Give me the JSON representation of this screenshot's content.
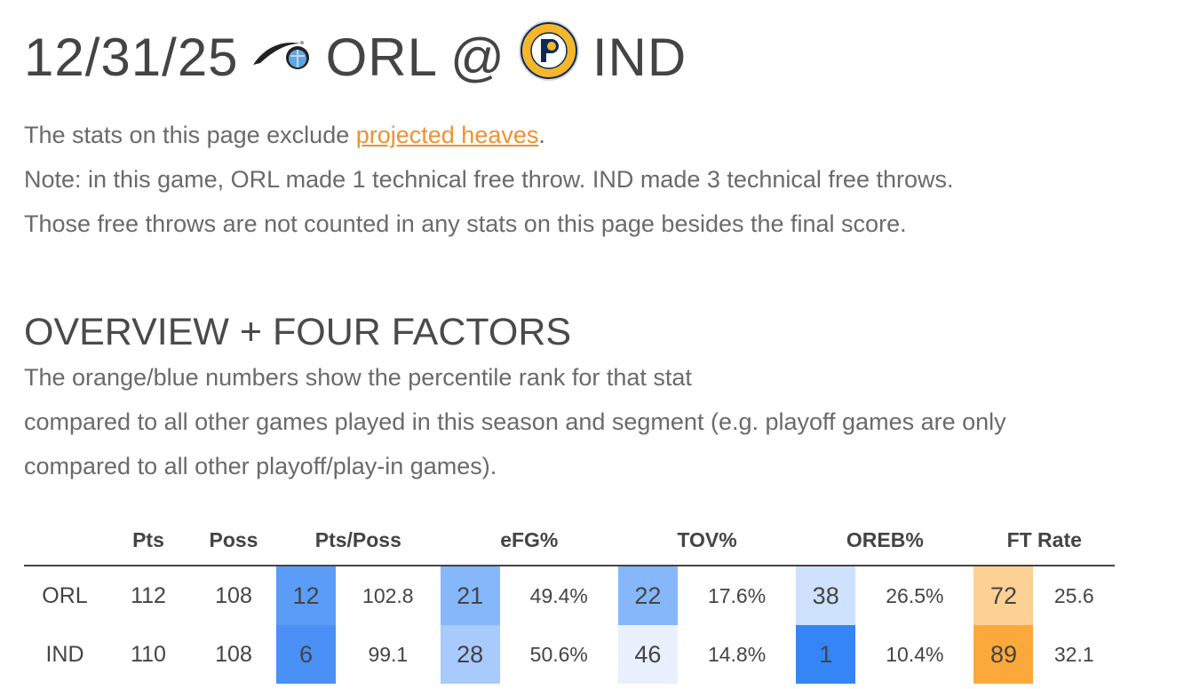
{
  "header": {
    "date": "12/31/25",
    "away": "ORL",
    "at": "@",
    "home": "IND",
    "away_logo": "orlando-magic-logo",
    "home_logo": "indiana-pacers-logo"
  },
  "intro": {
    "line1_pre": "The stats on this page exclude ",
    "link": "projected heaves",
    "line1_post": ".",
    "line2": "Note: in this game, ORL made 1 technical free throw. IND made 3 technical free throws.",
    "line3": "Those free throws are not counted in any stats on this page besides the final score."
  },
  "section": {
    "title": "OVERVIEW + FOUR FACTORS",
    "desc1": "The orange/blue numbers show the percentile rank for that stat",
    "desc2": "compared to all other games played in this season and segment (e.g. playoff games are only",
    "desc3": "compared to all other playoff/play-in games)."
  },
  "table": {
    "headers": [
      "",
      "Pts",
      "Poss",
      "Pts/Poss",
      "eFG%",
      "TOV%",
      "OREB%",
      "FT Rate"
    ],
    "rows": [
      {
        "team": "ORL",
        "pts": "112",
        "poss": "108",
        "ptsposs": {
          "pct": "12",
          "val": "102.8",
          "color": "#5b9cf8"
        },
        "efg": {
          "pct": "21",
          "val": "49.4%",
          "color": "#86b7fb"
        },
        "tov": {
          "pct": "22",
          "val": "17.6%",
          "color": "#86b7fb"
        },
        "oreb": {
          "pct": "38",
          "val": "26.5%",
          "color": "#cfe2fd"
        },
        "ft": {
          "pct": "72",
          "val": "25.6",
          "color": "#fdd193"
        }
      },
      {
        "team": "IND",
        "pts": "110",
        "poss": "108",
        "ptsposs": {
          "pct": "6",
          "val": "99.1",
          "color": "#4a90f6"
        },
        "efg": {
          "pct": "28",
          "val": "50.6%",
          "color": "#a8cafc"
        },
        "tov": {
          "pct": "46",
          "val": "14.8%",
          "color": "#e9f1fe"
        },
        "oreb": {
          "pct": "1",
          "val": "10.4%",
          "color": "#3585f6"
        },
        "ft": {
          "pct": "89",
          "val": "32.1",
          "color": "#fca93c"
        }
      }
    ]
  },
  "colors": {
    "link": "#f0902f"
  }
}
